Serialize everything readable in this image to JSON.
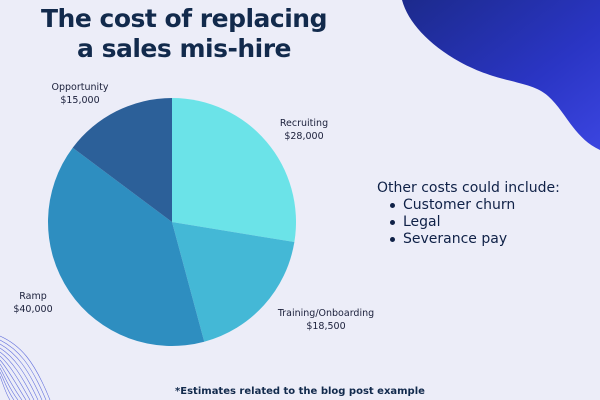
{
  "title": {
    "line1": "The cost of replacing",
    "line2": "a sales mis-hire"
  },
  "other_costs": {
    "heading": "Other costs could include:",
    "items": [
      "Customer churn",
      "Legal",
      "Severance pay"
    ]
  },
  "footnote": "*Estimates related to the blog post example",
  "colors": {
    "background": "#ecedf8",
    "title": "#122a4c",
    "accent_blob": "#2d3ad0"
  },
  "chart_data": {
    "type": "pie",
    "title": "",
    "slices": [
      {
        "label": "Recruiting",
        "value_text": "$28,000",
        "value": 28000,
        "color": "#6be3e8"
      },
      {
        "label": "Training/Onboarding",
        "value_text": "$18,500",
        "value": 18500,
        "color": "#44b8d6"
      },
      {
        "label": "Ramp",
        "value_text": "$40,000",
        "value": 40000,
        "color": "#2e8ec0"
      },
      {
        "label": "Opportunity",
        "value_text": "$15,000",
        "value": 15000,
        "color": "#2c6099"
      }
    ],
    "start_angle": "12 o'clock",
    "direction": "clockwise",
    "legend": "none"
  }
}
